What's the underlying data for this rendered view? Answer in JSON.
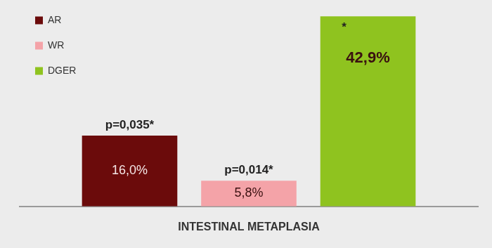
{
  "chart_data": {
    "type": "bar",
    "categories": [
      "INTESTINAL METAPLASIA"
    ],
    "series": [
      {
        "name": "AR",
        "color": "#6b0b0b",
        "values": [
          16.0
        ],
        "value_labels": [
          "16,0%"
        ],
        "annotation": "p=0,035*"
      },
      {
        "name": "WR",
        "color": "#f4a3a8",
        "values": [
          5.8
        ],
        "value_labels": [
          "5,8%"
        ],
        "annotation": "p=0,014*"
      },
      {
        "name": "DGER",
        "color": "#8fc31f",
        "values": [
          42.9
        ],
        "value_labels": [
          "42,9%"
        ],
        "annotation": "*"
      }
    ],
    "ylim": [
      0,
      45
    ],
    "grid": false,
    "legend": "top-left",
    "data_labels": true,
    "tick_labels": "x"
  }
}
